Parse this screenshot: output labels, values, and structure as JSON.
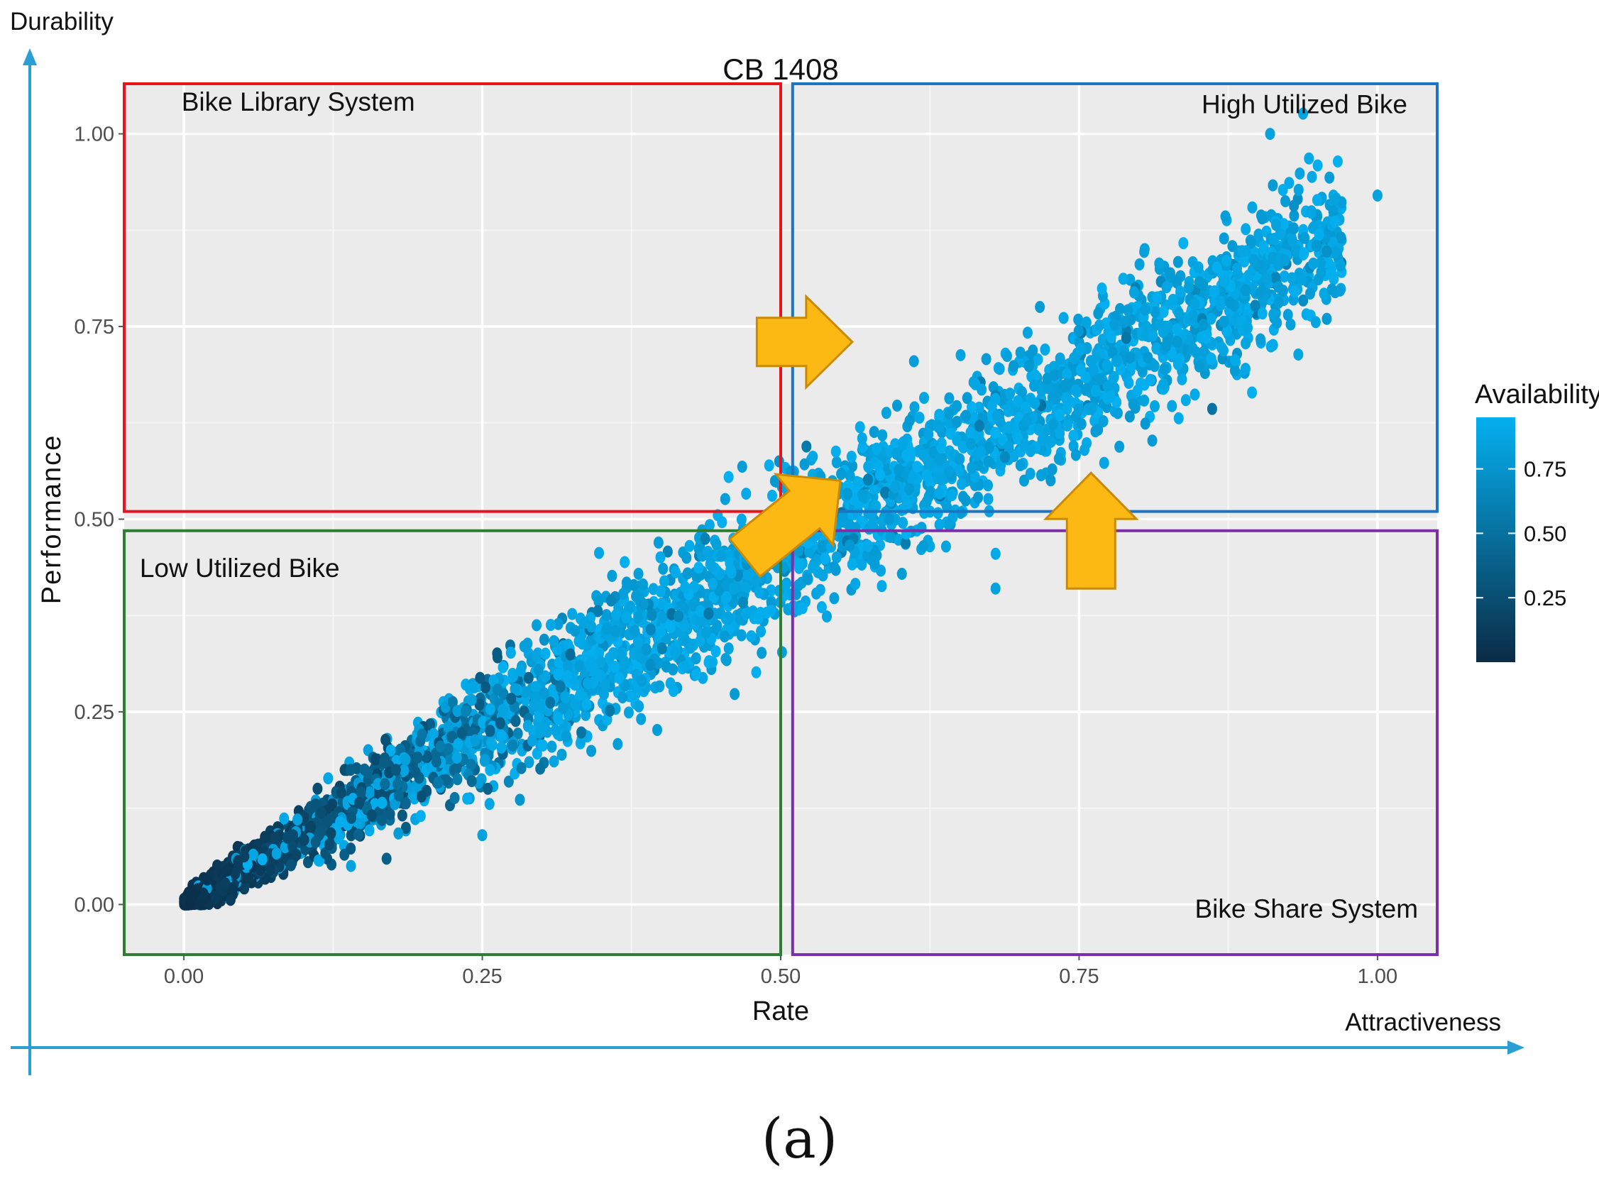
{
  "chart_data": {
    "type": "scatter",
    "title": "CB 1408",
    "xlabel": "Rate",
    "ylabel": "Performance",
    "xlim": [
      -0.05,
      1.05
    ],
    "ylim": [
      -0.065,
      1.065
    ],
    "xticks": [
      0.0,
      0.25,
      0.5,
      0.75,
      1.0
    ],
    "xtick_labels": [
      "0.00",
      "0.25",
      "0.50",
      "0.75",
      "1.00"
    ],
    "yticks": [
      0.0,
      0.25,
      0.5,
      0.75,
      1.0
    ],
    "ytick_labels": [
      "0.00",
      "0.25",
      "0.50",
      "0.75",
      "1.00"
    ],
    "grid": true,
    "legend": {
      "title": "Availability",
      "type": "colorbar",
      "placement": "right",
      "range": [
        0.0,
        0.95
      ],
      "ticks": [
        0.25,
        0.5,
        0.75
      ],
      "tick_labels": [
        "0.25",
        "0.50",
        "0.75"
      ],
      "color_low": "#0b2b45",
      "color_high": "#04b0f0"
    },
    "outer_axes": {
      "x_label": "Attractiveness",
      "y_label": "Durability",
      "color": "#2a9fd6"
    },
    "quadrants": [
      {
        "label": "Bike Library System",
        "x": [
          -0.05,
          0.5
        ],
        "y": [
          0.51,
          1.065
        ],
        "color": "#e8141c"
      },
      {
        "label": "High Utilized Bike",
        "x": [
          0.51,
          1.05
        ],
        "y": [
          0.51,
          1.065
        ],
        "color": "#1c74c4"
      },
      {
        "label": "Low Utilized Bike",
        "x": [
          -0.05,
          0.5
        ],
        "y": [
          -0.065,
          0.485
        ],
        "color": "#2e7d32"
      },
      {
        "label": "Bike Share System",
        "x": [
          0.51,
          1.05
        ],
        "y": [
          -0.065,
          0.485
        ],
        "color": "#7b2fa8"
      }
    ],
    "arrows": [
      {
        "direction": "right",
        "from": [
          0.48,
          0.73
        ],
        "to": [
          0.56,
          0.73
        ]
      },
      {
        "direction": "up-right",
        "from": [
          0.47,
          0.45
        ],
        "to": [
          0.55,
          0.55
        ]
      },
      {
        "direction": "up",
        "from": [
          0.76,
          0.41
        ],
        "to": [
          0.76,
          0.56
        ]
      }
    ],
    "arrow_color": "#fdb913",
    "scatter_model": {
      "count": 4200,
      "x_range": [
        0.0,
        1.0
      ],
      "trend": "y = 0.9 * x",
      "spread": 0.04,
      "availability_trend": "increases with rate, saturating near 0.9 above rate 0.3",
      "outliers": [
        [
          1.0,
          0.92
        ],
        [
          0.68,
          0.41
        ],
        [
          0.91,
          1.0
        ],
        [
          0.25,
          0.09
        ],
        [
          0.14,
          0.05
        ]
      ]
    }
  },
  "caption": "(a)"
}
